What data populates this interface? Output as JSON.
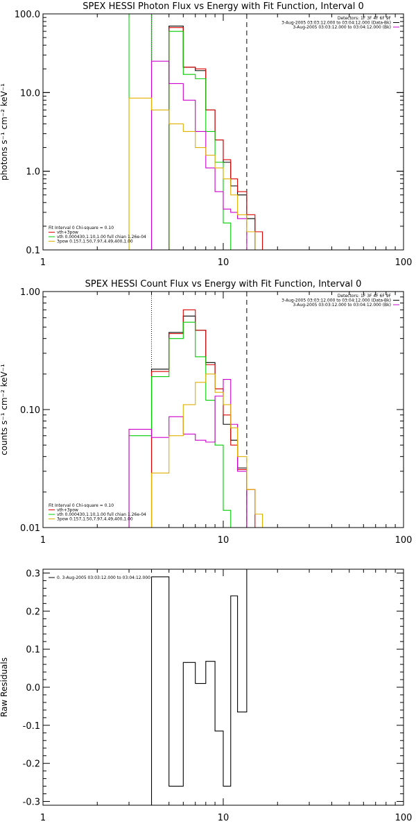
{
  "chart_data": [
    {
      "type": "line",
      "title": "SPEX HESSI Photon Flux vs Energy with Fit Function, Interval 0",
      "ylabel": "photons s⁻¹ cm⁻² keV⁻¹",
      "xlabel": "",
      "xscale": "log",
      "yscale": "log",
      "xlim": [
        1,
        100
      ],
      "ylim": [
        0.1,
        100
      ],
      "x_ticks": [
        "1",
        "10",
        "100"
      ],
      "y_ticks": [
        {
          "v": 0.1,
          "label": "0.1"
        },
        {
          "v": 1,
          "label": "1.0"
        },
        {
          "v": 10,
          "label": "10.0"
        },
        {
          "v": 100,
          "label": "100.0"
        }
      ],
      "vlines": [
        {
          "x": 3.0,
          "style": "solid",
          "color": "#00cc00"
        },
        {
          "x": 4.0,
          "style": "solid",
          "color": "#00cc00"
        },
        {
          "x": 4.0,
          "style": "dotted",
          "color": "#cc00cc"
        },
        {
          "x": 13.5,
          "style": "dashed",
          "color": "#000000"
        }
      ],
      "info_lines": [
        "Detectors: 1F 3F 4F 6F 9F",
        "3-Aug-2005 03:03:12.000 to 03:04:12.000 (Data-Bk)",
        "3-Aug-2005 03:03:12.000 to 03:04:12.000 (Bk)"
      ],
      "info_colors": [
        "#000000",
        "#000000",
        "#cc00cc"
      ],
      "legend": [
        {
          "label": "Fit Interval 0   Chi-square = 0.10",
          "color": "#000000"
        },
        {
          "label": "vth+3pow",
          "color": "#dd0000"
        },
        {
          "label": "vth 0.000430,1.10,1.00   full chian 1.26e-04",
          "color": "#00cc00"
        },
        {
          "label": "3pow 0.157,1.50,7.97,4.49,400,1.00",
          "color": "#e0b000"
        }
      ],
      "edges": [
        3,
        4,
        5,
        6,
        7,
        8,
        9,
        10,
        11,
        12,
        13.5,
        15,
        16.5
      ],
      "series": [
        {
          "name": "vth+3pow",
          "color": "#000000",
          "values": [
            null,
            null,
            70,
            21,
            19,
            6,
            2.5,
            1.3,
            0.65,
            0.5,
            0.25,
            null
          ]
        },
        {
          "name": "vth+3pow",
          "color": "#dd0000",
          "values": [
            null,
            null,
            67,
            21,
            20,
            6,
            2.5,
            1.4,
            0.8,
            0.55,
            0.28,
            0.17
          ]
        },
        {
          "name": "vth",
          "color": "#00cc00",
          "values": [
            null,
            null,
            60,
            17,
            15,
            3.2,
            1.3,
            0.22,
            0.08,
            null,
            null,
            null
          ]
        },
        {
          "name": "Bk",
          "color": "#cc00cc",
          "values": [
            null,
            25,
            13,
            8,
            3.2,
            1.1,
            0.55,
            0.33,
            0.3,
            0.25,
            0.08,
            null
          ]
        },
        {
          "name": "3pow",
          "color": "#e0b000",
          "values": [
            8.5,
            6,
            4,
            3.2,
            2.0,
            1.6,
            1.1,
            0.8,
            0.5,
            0.28,
            0.17,
            0.1
          ]
        }
      ]
    },
    {
      "type": "line",
      "title": "SPEX HESSI Count Flux vs Energy with Fit Function, Interval 0",
      "ylabel": "counts s⁻¹ cm⁻² keV⁻¹",
      "xlabel": "",
      "xscale": "log",
      "yscale": "log",
      "xlim": [
        1,
        100
      ],
      "ylim": [
        0.01,
        1
      ],
      "x_ticks": [
        "1",
        "10",
        "100"
      ],
      "y_ticks": [
        {
          "v": 0.01,
          "label": "0.01"
        },
        {
          "v": 0.1,
          "label": "0.10"
        },
        {
          "v": 1,
          "label": "1.00"
        }
      ],
      "vlines": [
        {
          "x": 4.0,
          "style": "dotted",
          "color": "#000000"
        },
        {
          "x": 13.5,
          "style": "dashed",
          "color": "#000000"
        }
      ],
      "info_lines": [
        "Detectors: 1F 3F 4F 6F 9F",
        "3-Aug-2005 03:03:12.000 to 03:04:12.000 (Data-Bk)",
        "3-Aug-2005 03:03:12.000 to 03:04:12.000 (Bk)"
      ],
      "info_colors": [
        "#000000",
        "#000000",
        "#cc00cc"
      ],
      "legend": [
        {
          "label": "Fit Interval 0   Chi-square = 0.10",
          "color": "#000000"
        },
        {
          "label": "vth+3pow",
          "color": "#dd0000"
        },
        {
          "label": "vth 0.000430,1.10,1.00   full chian 1.26e-04",
          "color": "#00cc00"
        },
        {
          "label": "3pow 0.157,1.50,7.97,4.49,400,1.00",
          "color": "#e0b000"
        }
      ],
      "edges": [
        3,
        4,
        5,
        6,
        7,
        8,
        9,
        10,
        11,
        12,
        13.5,
        15,
        16.5
      ],
      "series": [
        {
          "name": "Data-Bk",
          "color": "#000000",
          "values": [
            null,
            0.22,
            0.45,
            0.62,
            0.47,
            0.25,
            0.15,
            0.075,
            0.055,
            0.032,
            null,
            null
          ]
        },
        {
          "name": "vth+3pow",
          "color": "#dd0000",
          "values": [
            null,
            0.21,
            0.44,
            0.7,
            0.47,
            0.24,
            0.15,
            0.09,
            0.05,
            0.031,
            0.021,
            null
          ]
        },
        {
          "name": "vth",
          "color": "#00cc00",
          "values": [
            0.06,
            0.19,
            0.4,
            0.55,
            0.28,
            0.12,
            0.05,
            0.014,
            null,
            null,
            null,
            null
          ]
        },
        {
          "name": "Bk",
          "color": "#cc00cc",
          "values": [
            0.068,
            0.058,
            0.087,
            0.062,
            0.055,
            0.053,
            0.13,
            0.18,
            0.075,
            0.03,
            null,
            null
          ]
        },
        {
          "name": "3pow",
          "color": "#e0b000",
          "values": [
            null,
            0.029,
            0.06,
            0.11,
            0.17,
            0.2,
            0.14,
            0.11,
            0.07,
            0.04,
            0.021,
            0.013
          ]
        }
      ]
    },
    {
      "type": "line",
      "title": "",
      "ylabel": "Raw Residuals",
      "xlabel": "",
      "xscale": "log",
      "yscale": "linear",
      "xlim": [
        1,
        100
      ],
      "ylim": [
        -0.31,
        0.31
      ],
      "x_ticks": [
        "1",
        "10",
        "100"
      ],
      "y_ticks": [
        {
          "v": 0.3,
          "label": "0.3"
        },
        {
          "v": 0.2,
          "label": "0.2"
        },
        {
          "v": 0.1,
          "label": "0.1"
        },
        {
          "v": 0.0,
          "label": "0.0"
        },
        {
          "v": -0.1,
          "label": "-0.1"
        },
        {
          "v": -0.2,
          "label": "-0.2"
        },
        {
          "v": -0.3,
          "label": "-0.3"
        }
      ],
      "vlines": [],
      "info_lines": [],
      "info_colors": [],
      "legend": [
        {
          "label": "0.  3-Aug-2005 03:03:12.000 to 03:04:12.000",
          "color": "#000000"
        }
      ],
      "edges": [
        4,
        5,
        6,
        7,
        8,
        9,
        10,
        11,
        12,
        13.5
      ],
      "series": [
        {
          "name": "0.",
          "color": "#000000",
          "values": [
            0.29,
            -0.26,
            0.065,
            0.01,
            0.068,
            -0.115,
            -0.26,
            0.24,
            -0.065
          ]
        }
      ]
    }
  ]
}
